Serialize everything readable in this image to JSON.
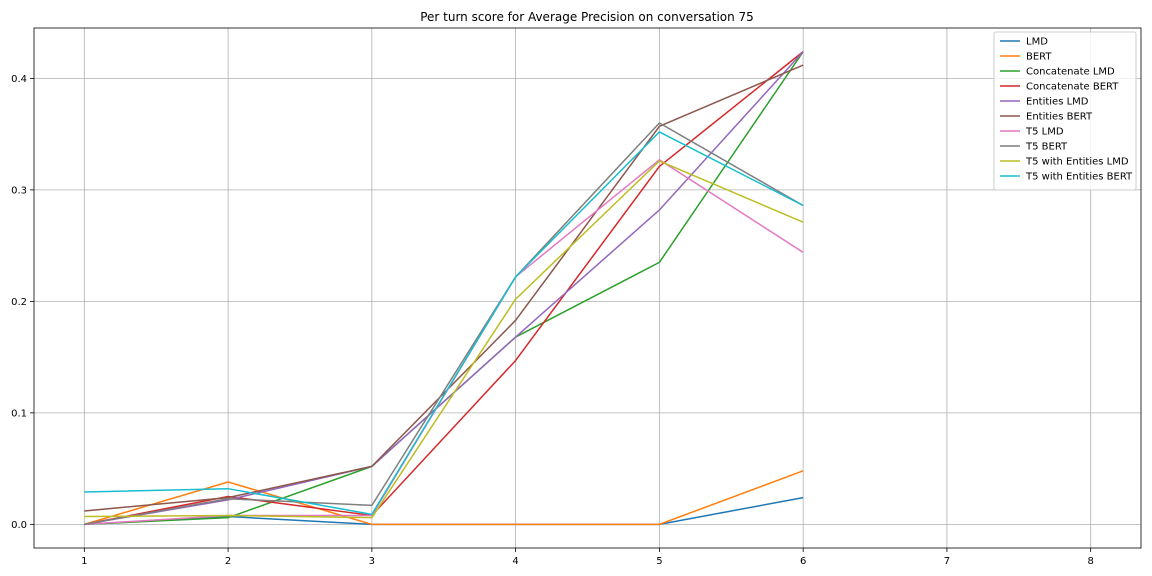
{
  "chart_data": {
    "type": "line",
    "title": "Per turn score for Average Precision on conversation 75",
    "xlabel": "",
    "ylabel": "",
    "xlim": [
      0.65,
      8.35
    ],
    "ylim": [
      -0.0212,
      0.4452
    ],
    "x_ticks": [
      1,
      2,
      3,
      4,
      5,
      6,
      7,
      8
    ],
    "y_ticks": [
      0.0,
      0.1,
      0.2,
      0.3,
      0.4
    ],
    "y_tick_labels": [
      "0.0",
      "0.1",
      "0.2",
      "0.3",
      "0.4"
    ],
    "grid": true,
    "legend_position": "top-right",
    "x": [
      1,
      2,
      3,
      4,
      5,
      6
    ],
    "series": [
      {
        "name": "LMD",
        "color": "#1f77b4",
        "values": [
          0.0,
          0.007,
          0.0,
          0.0,
          0.0,
          0.024
        ]
      },
      {
        "name": "BERT",
        "color": "#ff7f0e",
        "values": [
          0.0,
          0.038,
          0.0,
          0.0,
          0.0,
          0.048
        ]
      },
      {
        "name": "Concatenate LMD",
        "color": "#2ca02c",
        "values": [
          0.0,
          0.006,
          0.052,
          0.168,
          0.235,
          0.424
        ]
      },
      {
        "name": "Concatenate BERT",
        "color": "#d62728",
        "values": [
          0.0,
          0.025,
          0.008,
          0.147,
          0.321,
          0.424
        ]
      },
      {
        "name": "Entities LMD",
        "color": "#9467bd",
        "values": [
          0.0,
          0.022,
          0.052,
          0.168,
          0.282,
          0.424
        ]
      },
      {
        "name": "Entities BERT",
        "color": "#8c564b",
        "values": [
          0.012,
          0.024,
          0.052,
          0.183,
          0.357,
          0.412
        ]
      },
      {
        "name": "T5 LMD",
        "color": "#e377c2",
        "values": [
          0.0,
          0.008,
          0.008,
          0.222,
          0.327,
          0.244
        ]
      },
      {
        "name": "T5 BERT",
        "color": "#7f7f7f",
        "values": [
          0.0,
          0.023,
          0.017,
          0.222,
          0.36,
          0.286
        ]
      },
      {
        "name": "T5 with Entities LMD",
        "color": "#bcbd22",
        "values": [
          0.007,
          0.008,
          0.006,
          0.202,
          0.326,
          0.271
        ]
      },
      {
        "name": "T5 with Entities BERT",
        "color": "#17becf",
        "values": [
          0.029,
          0.032,
          0.009,
          0.222,
          0.352,
          0.286
        ]
      }
    ]
  }
}
